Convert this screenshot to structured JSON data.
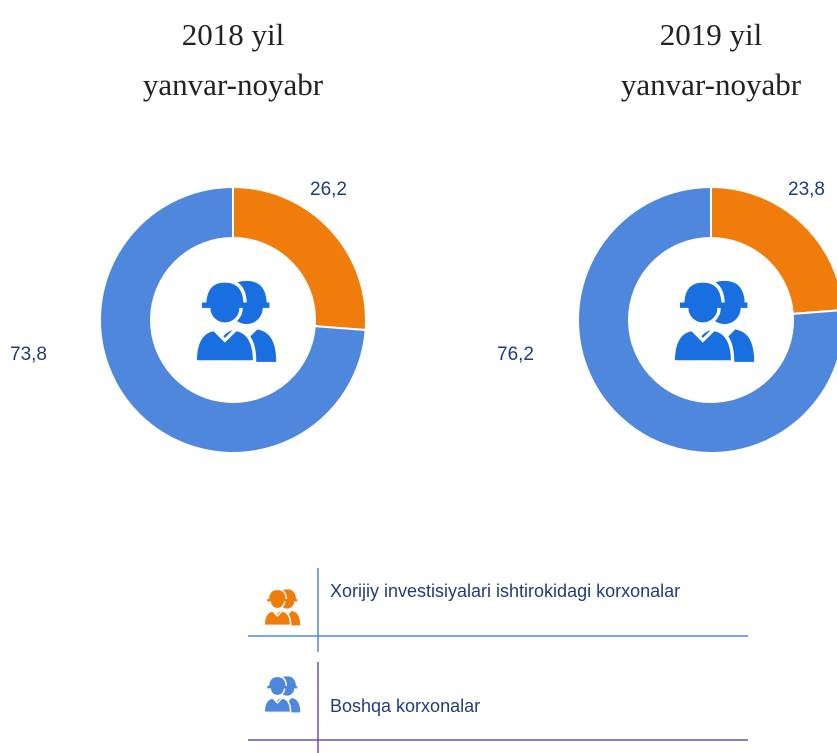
{
  "chart_data": [
    {
      "type": "pie",
      "title": "2018 yil",
      "subtitle": "yanvar-noyabr",
      "categories": [
        "Xorijiy investisiyalari ishtirokidagi korxonalar",
        "Boshqa korxonalar"
      ],
      "values": [
        26.2,
        73.8
      ],
      "value_labels": [
        "26,2",
        "73,8"
      ],
      "colors": [
        "#f07c0c",
        "#4f87dd"
      ],
      "donut": true
    },
    {
      "type": "pie",
      "title": "2019 yil",
      "subtitle": "yanvar-noyabr",
      "categories": [
        "Xorijiy investisiyalari ishtirokidagi korxonalar",
        "Boshqa korxonalar"
      ],
      "values": [
        23.8,
        76.2
      ],
      "value_labels": [
        "23,8",
        "76,2"
      ],
      "colors": [
        "#f07c0c",
        "#4f87dd"
      ],
      "donut": true
    }
  ]
}
